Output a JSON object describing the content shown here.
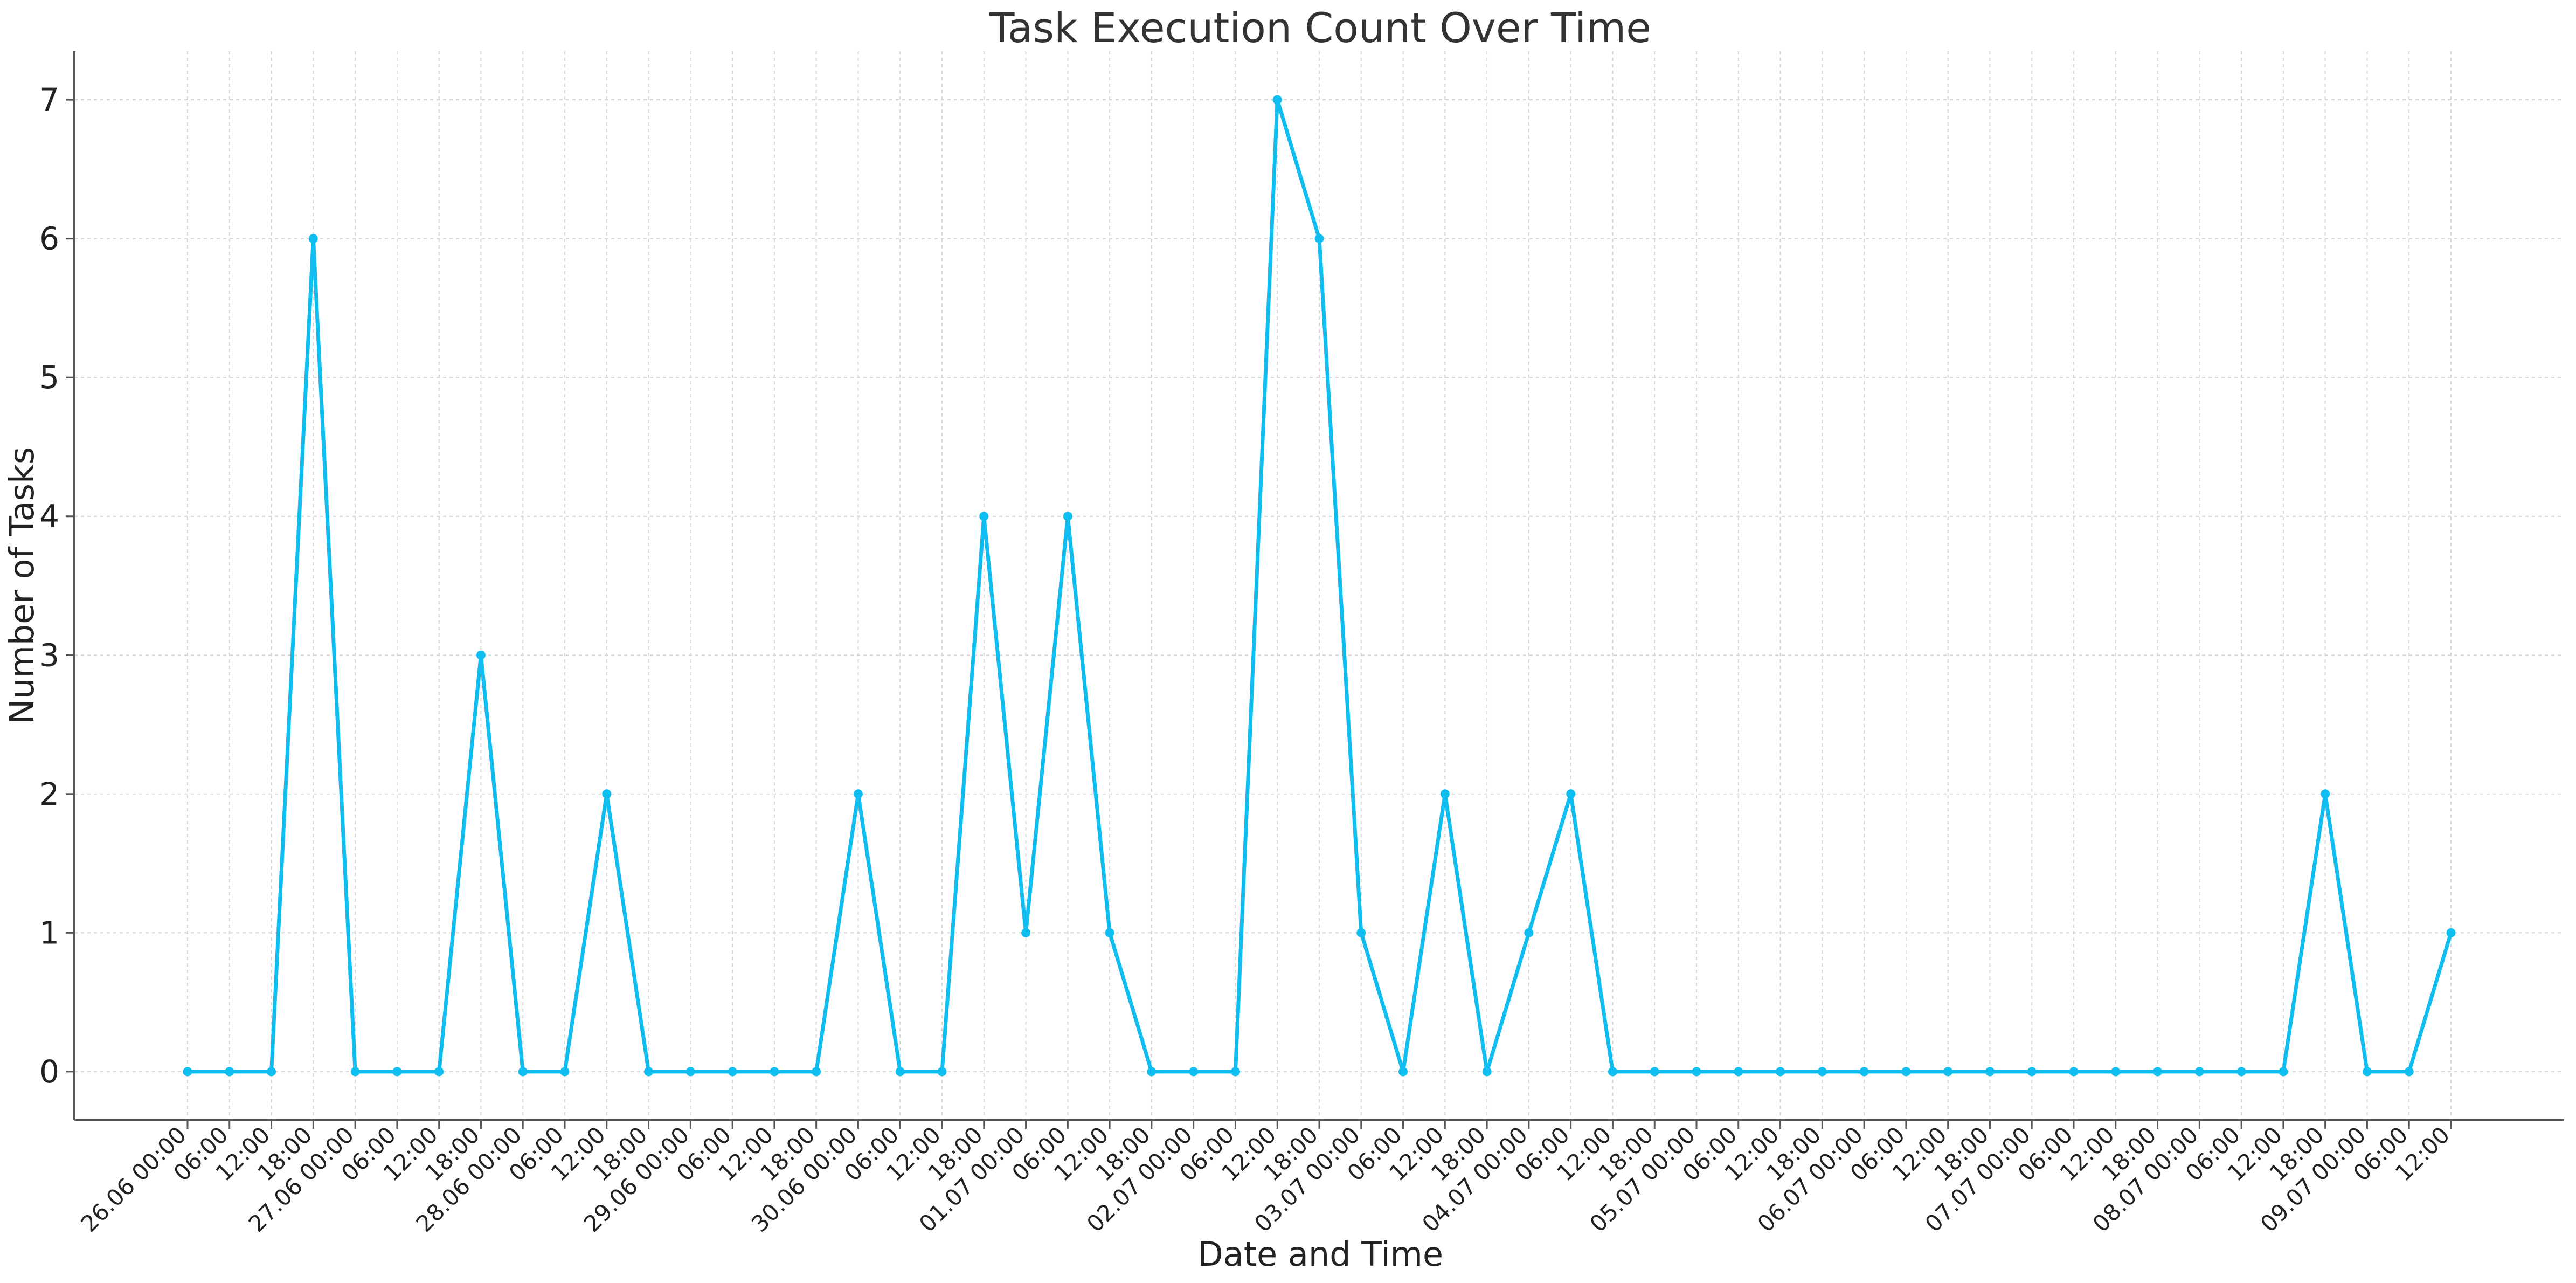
{
  "chart_data": {
    "type": "line",
    "title": "Task Execution Count Over Time",
    "xlabel": "Date and Time",
    "ylabel": "Number of Tasks",
    "ylim": [
      -0.35,
      7.35
    ],
    "yticks": [
      0,
      1,
      2,
      3,
      4,
      5,
      6,
      7
    ],
    "grid": true,
    "colors": {
      "line": "#10bdf0",
      "marker": "#10bdf0"
    },
    "categories": [
      "26.06 00:00",
      "06:00",
      "12:00",
      "18:00",
      "27.06 00:00",
      "06:00",
      "12:00",
      "18:00",
      "28.06 00:00",
      "06:00",
      "12:00",
      "18:00",
      "29.06 00:00",
      "06:00",
      "12:00",
      "18:00",
      "30.06 00:00",
      "06:00",
      "12:00",
      "18:00",
      "01.07 00:00",
      "06:00",
      "12:00",
      "18:00",
      "02.07 00:00",
      "06:00",
      "12:00",
      "18:00",
      "03.07 00:00",
      "06:00",
      "12:00",
      "18:00",
      "04.07 00:00",
      "06:00",
      "12:00",
      "18:00",
      "05.07 00:00",
      "06:00",
      "12:00",
      "18:00",
      "06.07 00:00",
      "06:00",
      "12:00",
      "18:00",
      "07.07 00:00",
      "06:00",
      "12:00",
      "18:00",
      "08.07 00:00",
      "06:00",
      "12:00",
      "18:00",
      "09.07 00:00",
      "06:00",
      "12:00"
    ],
    "values": [
      0,
      0,
      0,
      6,
      0,
      0,
      0,
      3,
      0,
      0,
      2,
      0,
      0,
      0,
      0,
      0,
      2,
      0,
      0,
      4,
      1,
      4,
      1,
      0,
      0,
      0,
      7,
      6,
      1,
      0,
      2,
      0,
      1,
      2,
      0,
      0,
      0,
      0,
      0,
      0,
      0,
      0,
      0,
      0,
      0,
      0,
      0,
      0,
      0,
      0,
      0,
      2,
      0,
      0,
      1
    ]
  }
}
